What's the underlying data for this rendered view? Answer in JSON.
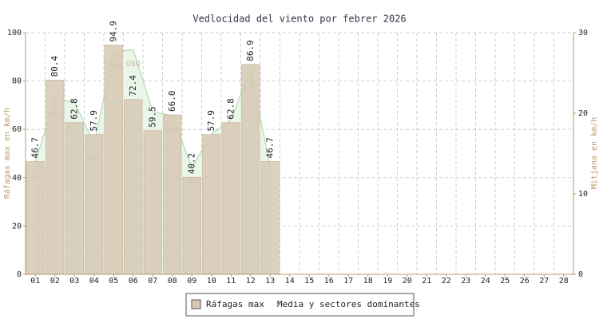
{
  "chart_data": {
    "type": "bar",
    "title": "Vedlocidad del viento por febrer 2026",
    "ylabel": "Ráfagas max en km/h",
    "y2label": "Mitjana en km/h",
    "categories": [
      "01",
      "02",
      "03",
      "04",
      "05",
      "06",
      "07",
      "08",
      "09",
      "10",
      "11",
      "12",
      "13",
      "14",
      "15",
      "16",
      "17",
      "18",
      "19",
      "20",
      "21",
      "22",
      "23",
      "24",
      "25",
      "26",
      "27",
      "28"
    ],
    "ylim": [
      0,
      100
    ],
    "yticks": [
      0,
      20,
      40,
      60,
      80,
      100
    ],
    "y2lim": [
      0,
      30
    ],
    "y2ticks": [
      0,
      10,
      20,
      30
    ],
    "grid": true,
    "legend": "bottom",
    "series": [
      {
        "name": "Ráfagas max",
        "color": "#d6c8b4",
        "values": [
          46.7,
          80.4,
          62.8,
          57.9,
          94.9,
          72.4,
          59.5,
          66.0,
          40.2,
          57.9,
          62.8,
          86.9,
          46.7,
          null,
          null,
          null,
          null,
          null,
          null,
          null,
          null,
          null,
          null,
          null,
          null,
          null,
          null,
          null
        ],
        "value_labels": [
          "46.7",
          "80.4",
          "62.8",
          "57.9",
          "94.9",
          "72.4",
          "59.5",
          "66.0",
          "40.2",
          "57.9",
          "62.8",
          "86.9",
          "46.7",
          null,
          null,
          null,
          null,
          null,
          null,
          null,
          null,
          null,
          null,
          null,
          null,
          null,
          null,
          null
        ]
      },
      {
        "name": "Media y sectores dominantes",
        "color": "#a8d4a8",
        "axis": "y2",
        "values": [
          14.0,
          21.7,
          21.4,
          16.2,
          27.6,
          27.9,
          20.2,
          19.7,
          13.3,
          17.4,
          19.2,
          25.6,
          13.3,
          null,
          null,
          null,
          null,
          null,
          null,
          null,
          null,
          null,
          null,
          null,
          null,
          null,
          null,
          null
        ],
        "sectors": [
          "O",
          "OSO",
          null,
          "OSO",
          "OSO",
          "OSO",
          null,
          "OSO",
          "O",
          null,
          null,
          "O",
          "O",
          null,
          null,
          null,
          null,
          null,
          null,
          null,
          null,
          null,
          null,
          null,
          null,
          null,
          null,
          null
        ]
      }
    ]
  }
}
